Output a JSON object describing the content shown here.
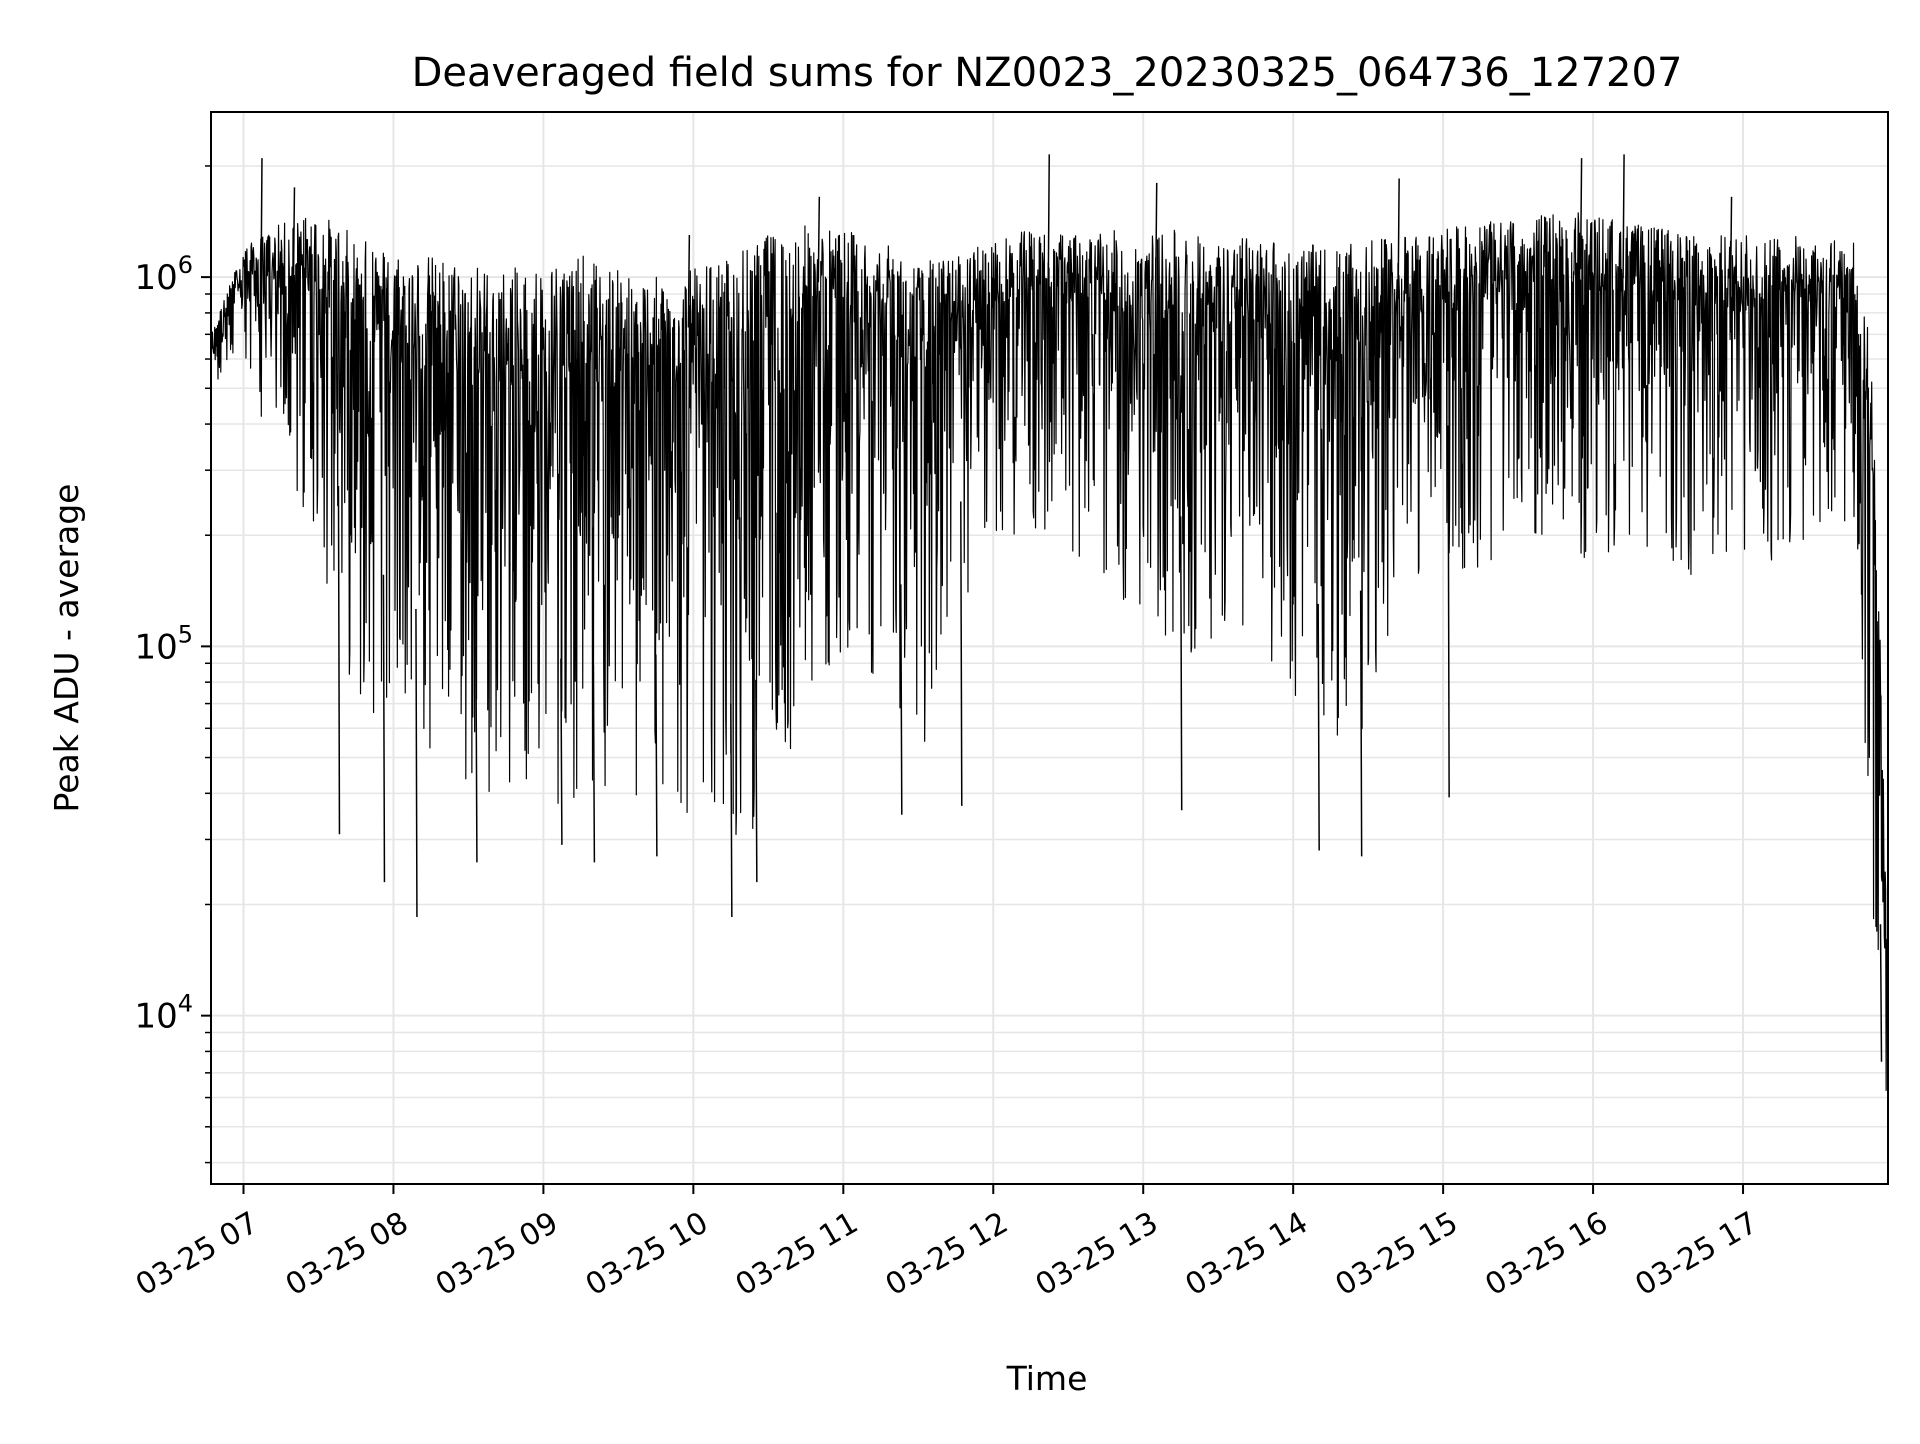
{
  "chart_data": {
    "type": "line",
    "title": "Deaveraged field sums for NZ0023_20230325_064736_127207",
    "xlabel": "Time",
    "ylabel": "Peak ADU - average",
    "yscale": "log",
    "ylim": [
      3500,
      2800000
    ],
    "xlim": [
      "2023-03-25 06:47",
      "2023-03-25 17:58"
    ],
    "x_ticks": [
      {
        "value": "2023-03-25 07:00",
        "label": "03-25 07"
      },
      {
        "value": "2023-03-25 08:00",
        "label": "03-25 08"
      },
      {
        "value": "2023-03-25 09:00",
        "label": "03-25 09"
      },
      {
        "value": "2023-03-25 10:00",
        "label": "03-25 10"
      },
      {
        "value": "2023-03-25 11:00",
        "label": "03-25 11"
      },
      {
        "value": "2023-03-25 12:00",
        "label": "03-25 12"
      },
      {
        "value": "2023-03-25 13:00",
        "label": "03-25 13"
      },
      {
        "value": "2023-03-25 14:00",
        "label": "03-25 14"
      },
      {
        "value": "2023-03-25 15:00",
        "label": "03-25 15"
      },
      {
        "value": "2023-03-25 16:00",
        "label": "03-25 16"
      },
      {
        "value": "2023-03-25 17:00",
        "label": "03-25 17"
      }
    ],
    "y_ticks": [
      {
        "value": 10000,
        "base": "10",
        "exp": "4"
      },
      {
        "value": 100000,
        "base": "10",
        "exp": "5"
      },
      {
        "value": 1000000,
        "base": "10",
        "exp": "6"
      }
    ],
    "grid": true,
    "line_color": "#000000",
    "grid_color": "#e6e6e6",
    "series": [
      {
        "x": [
          "2023-03-25 06:47",
          "2023-03-25 07:00",
          "2023-03-25 07:15",
          "2023-03-25 07:30",
          "2023-03-25 07:45",
          "2023-03-25 08:00",
          "2023-03-25 08:15",
          "2023-03-25 08:30",
          "2023-03-25 08:45",
          "2023-03-25 09:00",
          "2023-03-25 09:15",
          "2023-03-25 09:30",
          "2023-03-25 09:45",
          "2023-03-25 10:00",
          "2023-03-25 10:15",
          "2023-03-25 10:30",
          "2023-03-25 10:45",
          "2023-03-25 11:00",
          "2023-03-25 11:15",
          "2023-03-25 11:30",
          "2023-03-25 11:45",
          "2023-03-25 12:00",
          "2023-03-25 12:15",
          "2023-03-25 12:30",
          "2023-03-25 12:45",
          "2023-03-25 13:00",
          "2023-03-25 13:15",
          "2023-03-25 13:30",
          "2023-03-25 13:45",
          "2023-03-25 14:00",
          "2023-03-25 14:15",
          "2023-03-25 14:30",
          "2023-03-25 14:45",
          "2023-03-25 15:00",
          "2023-03-25 15:15",
          "2023-03-25 15:30",
          "2023-03-25 15:45",
          "2023-03-25 16:00",
          "2023-03-25 16:15",
          "2023-03-25 16:30",
          "2023-03-25 16:45",
          "2023-03-25 17:00",
          "2023-03-25 17:15",
          "2023-03-25 17:30",
          "2023-03-25 17:45",
          "2023-03-25 17:52",
          "2023-03-25 17:58"
        ],
        "upper": [
          700000,
          1200000,
          1400000,
          1500000,
          1300000,
          1200000,
          1150000,
          1100000,
          1050000,
          1100000,
          1150000,
          1050000,
          1000000,
          1050000,
          1150000,
          1300000,
          1400000,
          1350000,
          1250000,
          1100000,
          1150000,
          1250000,
          1350000,
          1300000,
          1350000,
          1300000,
          1350000,
          1250000,
          1300000,
          1250000,
          1200000,
          1250000,
          1300000,
          1350000,
          1400000,
          1450000,
          1500000,
          1500000,
          1400000,
          1350000,
          1300000,
          1300000,
          1300000,
          1300000,
          1250000,
          600000,
          15000
        ],
        "lower": [
          500000,
          550000,
          300000,
          180000,
          70000,
          60000,
          45000,
          40000,
          40000,
          38000,
          36000,
          35000,
          38000,
          30000,
          28000,
          35000,
          60000,
          100000,
          80000,
          45000,
          90000,
          180000,
          200000,
          180000,
          140000,
          120000,
          90000,
          90000,
          110000,
          70000,
          45000,
          60000,
          150000,
          160000,
          150000,
          200000,
          180000,
          160000,
          200000,
          160000,
          150000,
          140000,
          180000,
          200000,
          220000,
          10000,
          5000
        ],
        "spikes_high": [
          {
            "x": "2023-03-25 07:07",
            "y": 2100000
          },
          {
            "x": "2023-03-25 07:20",
            "y": 1750000
          },
          {
            "x": "2023-03-25 09:58",
            "y": 1300000
          },
          {
            "x": "2023-03-25 10:50",
            "y": 1650000
          },
          {
            "x": "2023-03-25 12:22",
            "y": 2150000
          },
          {
            "x": "2023-03-25 13:05",
            "y": 1800000
          },
          {
            "x": "2023-03-25 14:42",
            "y": 1850000
          },
          {
            "x": "2023-03-25 15:55",
            "y": 2100000
          },
          {
            "x": "2023-03-25 16:12",
            "y": 2150000
          },
          {
            "x": "2023-03-25 16:55",
            "y": 1650000
          }
        ],
        "spikes_low": [
          {
            "x": "2023-03-25 07:38",
            "y": 31000
          },
          {
            "x": "2023-03-25 07:56",
            "y": 23000
          },
          {
            "x": "2023-03-25 08:09",
            "y": 18500
          },
          {
            "x": "2023-03-25 08:33",
            "y": 26000
          },
          {
            "x": "2023-03-25 09:07",
            "y": 29000
          },
          {
            "x": "2023-03-25 09:20",
            "y": 26000
          },
          {
            "x": "2023-03-25 09:45",
            "y": 27000
          },
          {
            "x": "2023-03-25 10:15",
            "y": 18500
          },
          {
            "x": "2023-03-25 10:25",
            "y": 23000
          },
          {
            "x": "2023-03-25 11:23",
            "y": 35000
          },
          {
            "x": "2023-03-25 11:47",
            "y": 37000
          },
          {
            "x": "2023-03-25 13:15",
            "y": 36000
          },
          {
            "x": "2023-03-25 14:10",
            "y": 28000
          },
          {
            "x": "2023-03-25 14:27",
            "y": 27000
          },
          {
            "x": "2023-03-25 15:02",
            "y": 39000
          },
          {
            "x": "2023-03-25 17:55",
            "y": 7500
          }
        ]
      }
    ]
  }
}
